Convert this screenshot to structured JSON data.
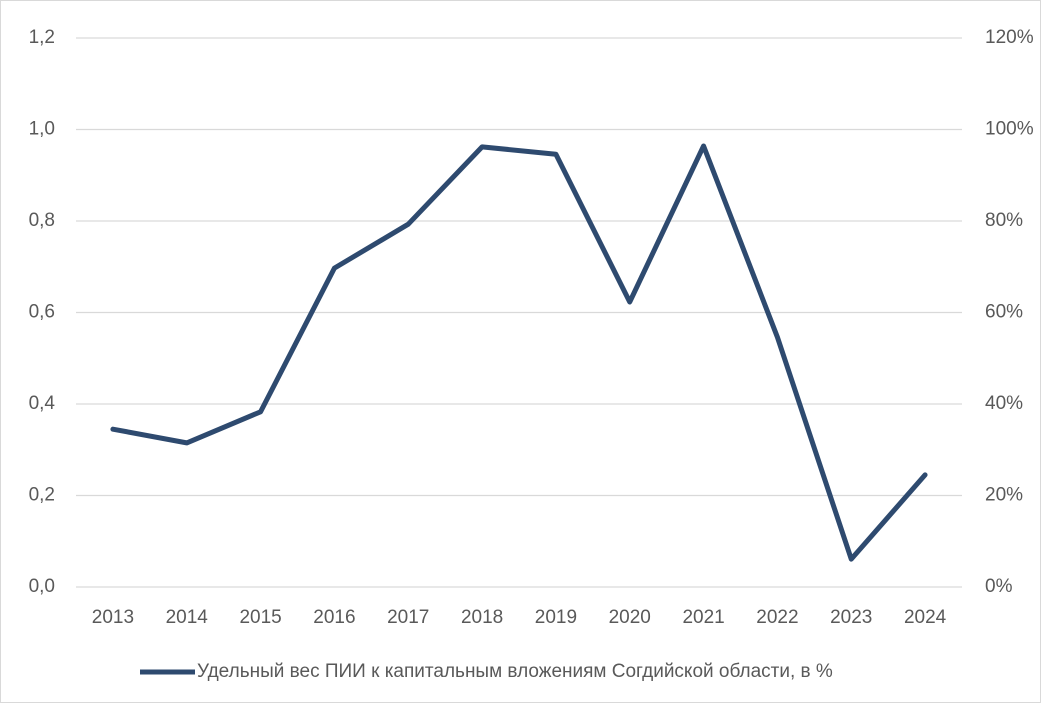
{
  "chart_data": {
    "type": "line",
    "categories": [
      "2013",
      "2014",
      "2015",
      "2016",
      "2017",
      "2018",
      "2019",
      "2020",
      "2021",
      "2022",
      "2023",
      "2024"
    ],
    "series": [
      {
        "name": "Удельный вес ПИИ к капитальным вложениям Согдийской области, в %",
        "color": "#2e4a6f",
        "values": [
          0.345,
          0.315,
          0.383,
          0.697,
          0.793,
          0.962,
          0.946,
          0.623,
          0.964,
          0.546,
          0.061,
          0.245
        ]
      }
    ],
    "ylim": [
      0,
      1.2
    ],
    "yticks": [
      {
        "value": 0,
        "label": "0,0"
      },
      {
        "value": 0.2,
        "label": "0,2"
      },
      {
        "value": 0.4,
        "label": "0,4"
      },
      {
        "value": 0.6,
        "label": "0,6"
      },
      {
        "value": 0.8,
        "label": "0,8"
      },
      {
        "value": 1.0,
        "label": "1,0"
      },
      {
        "value": 1.2,
        "label": "1,2"
      }
    ],
    "y2lim": [
      0,
      120
    ],
    "y2ticks": [
      {
        "value": 0,
        "label": "0%"
      },
      {
        "value": 20,
        "label": "20%"
      },
      {
        "value": 40,
        "label": "40%"
      },
      {
        "value": 60,
        "label": "60%"
      },
      {
        "value": 80,
        "label": "80%"
      },
      {
        "value": 100,
        "label": "100%"
      },
      {
        "value": 120,
        "label": "120%"
      }
    ],
    "grid": true,
    "legend": "bottom"
  }
}
